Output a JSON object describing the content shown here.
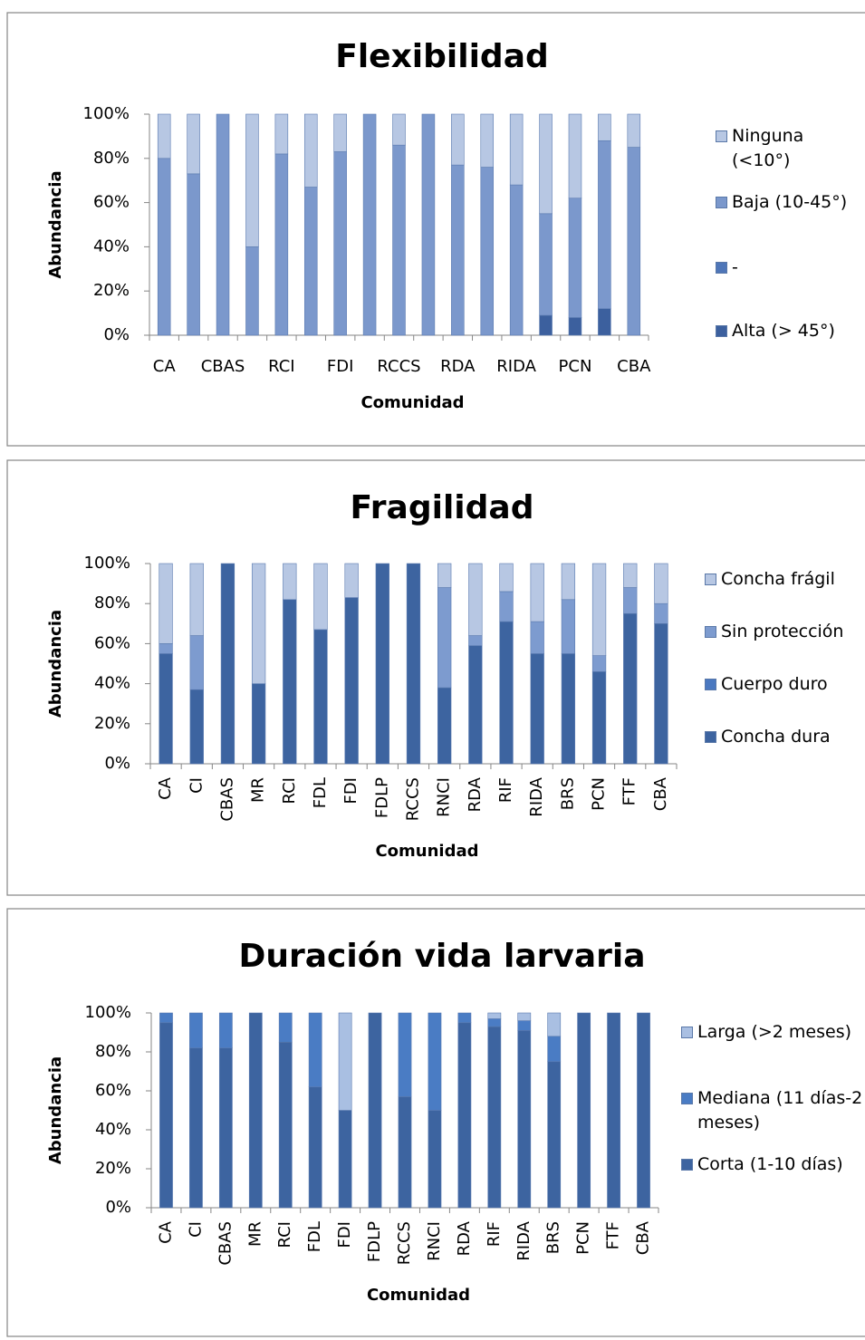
{
  "chart_data": [
    {
      "type": "bar",
      "stacked": true,
      "title": "Flexibilidad",
      "x_label": "Comunidad",
      "y_label": "Abundancia",
      "categories": [
        "CA",
        null,
        "CBAS",
        null,
        "RCI",
        null,
        "FDI",
        null,
        "RCCS",
        null,
        "RDA",
        null,
        "RIDA",
        null,
        "PCN",
        null,
        "CBA"
      ],
      "series": [
        {
          "name": "Alta (> 45°)",
          "color": "#3c609e",
          "values": [
            0,
            0,
            0,
            0,
            0,
            0,
            0,
            0,
            0,
            0,
            0,
            0,
            0,
            9,
            8,
            12,
            0
          ]
        },
        {
          "name": "-",
          "color": "#4f76b8",
          "values": [
            0,
            0,
            0,
            0,
            0,
            0,
            0,
            0,
            0,
            0,
            0,
            0,
            0,
            0,
            0,
            0,
            0
          ]
        },
        {
          "name": "Baja (10-45°)",
          "color": "#7b98cc",
          "values": [
            80,
            73,
            100,
            40,
            82,
            67,
            83,
            100,
            86,
            100,
            77,
            76,
            68,
            46,
            54,
            76,
            85
          ]
        },
        {
          "name": "Ninguna (<10°)",
          "color": "#b7c7e3",
          "values": [
            20,
            27,
            0,
            60,
            18,
            33,
            17,
            0,
            14,
            0,
            23,
            24,
            32,
            45,
            38,
            12,
            15
          ]
        }
      ],
      "ylim": [
        0,
        100
      ],
      "yticks": [
        {
          "value": 0,
          "label": "0%"
        },
        {
          "value": 20,
          "label": "20%"
        },
        {
          "value": 40,
          "label": "40%"
        },
        {
          "value": 60,
          "label": "60%"
        },
        {
          "value": 80,
          "label": "80%"
        },
        {
          "value": 100,
          "label": "100%"
        }
      ],
      "legend": "right"
    },
    {
      "type": "bar",
      "stacked": true,
      "title": "Fragilidad",
      "x_label": "Comunidad",
      "y_label": "Abundancia",
      "categories": [
        "CA",
        "CI",
        "CBAS",
        "MR",
        "RCI",
        "FDL",
        "FDI",
        "FDLP",
        "RCCS",
        "RNCI",
        "RDA",
        "RIF",
        "RIDA",
        "BRS",
        "PCN",
        "FTF",
        "CBA"
      ],
      "series": [
        {
          "name": "Concha dura",
          "color": "#3d64a0",
          "values": [
            55,
            37,
            100,
            40,
            82,
            67,
            83,
            100,
            100,
            38,
            59,
            71,
            55,
            55,
            46,
            75,
            70
          ]
        },
        {
          "name": "Cuerpo duro",
          "color": "#4a78c0",
          "values": [
            0,
            0,
            0,
            0,
            0,
            0,
            0,
            0,
            0,
            0,
            0,
            0,
            0,
            0,
            0,
            0,
            0
          ]
        },
        {
          "name": "Sin protección",
          "color": "#7d9bcf",
          "values": [
            5,
            27,
            0,
            0,
            0,
            0,
            0,
            0,
            0,
            50,
            5,
            15,
            16,
            27,
            8,
            13,
            10
          ]
        },
        {
          "name": "Concha frágil",
          "color": "#b7c7e3",
          "values": [
            40,
            36,
            0,
            60,
            18,
            33,
            17,
            0,
            0,
            12,
            36,
            14,
            29,
            18,
            46,
            12,
            20
          ]
        }
      ],
      "ylim": [
        0,
        100
      ],
      "yticks": [
        {
          "value": 0,
          "label": "0%"
        },
        {
          "value": 20,
          "label": "20%"
        },
        {
          "value": 40,
          "label": "40%"
        },
        {
          "value": 60,
          "label": "60%"
        },
        {
          "value": 80,
          "label": "80%"
        },
        {
          "value": 100,
          "label": "100%"
        }
      ],
      "legend": "right"
    },
    {
      "type": "bar",
      "stacked": true,
      "title": "Duración vida larvaria",
      "x_label": "Comunidad",
      "y_label": "Abundancia",
      "categories": [
        "CA",
        "CI",
        "CBAS",
        "MR",
        "RCI",
        "FDL",
        "FDI",
        "FDLP",
        "RCCS",
        "RNCI",
        "RDA",
        "RIF",
        "RIDA",
        "BRS",
        "PCN",
        "FTF",
        "CBA"
      ],
      "series": [
        {
          "name": "Corta (1-10 días)",
          "color": "#3d64a0",
          "values": [
            95,
            82,
            82,
            100,
            85,
            62,
            50,
            100,
            57,
            50,
            95,
            93,
            91,
            75,
            100,
            100,
            100
          ]
        },
        {
          "name": "Mediana (11 días-2 meses)",
          "color": "#4a7cc4",
          "values": [
            5,
            18,
            18,
            0,
            15,
            38,
            0,
            0,
            43,
            50,
            5,
            4,
            5,
            13,
            0,
            0,
            0
          ]
        },
        {
          "name": "Larga (>2 meses)",
          "color": "#a9bfe2",
          "values": [
            0,
            0,
            0,
            0,
            0,
            0,
            50,
            0,
            0,
            0,
            0,
            3,
            4,
            12,
            0,
            0,
            0
          ]
        }
      ],
      "ylim": [
        0,
        100
      ],
      "yticks": [
        {
          "value": 0,
          "label": "0%"
        },
        {
          "value": 20,
          "label": "20%"
        },
        {
          "value": 40,
          "label": "40%"
        },
        {
          "value": 60,
          "label": "60%"
        },
        {
          "value": 80,
          "label": "80%"
        },
        {
          "value": 100,
          "label": "100%"
        }
      ],
      "legend": "right"
    }
  ]
}
